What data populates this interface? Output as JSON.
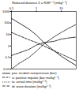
{
  "chart_data": {
    "type": "line",
    "xlabel": "Reduced distance Z = R/W¹ᐟ³ (m/kg¹ᐟ³)",
    "x": [
      0.1,
      0.2,
      0.5,
      1,
      2,
      5,
      10,
      20,
      40
    ],
    "series": [
      {
        "name": "pso: incident overpressure (bar)",
        "color": "#000000",
        "line_style": "solid",
        "values": [
          250,
          100,
          30,
          9,
          2,
          0.4,
          0.13,
          0.05,
          0.02
        ]
      },
      {
        "name": "is: positive impulse (bar·ms/kg¹ᐟ³)",
        "color": "#000000",
        "line_style": "dashed",
        "values": [
          15,
          8,
          3.5,
          2,
          1,
          0.4,
          0.2,
          0.1,
          0.05
        ]
      },
      {
        "name": "ta: arrival time (ms/kg¹ᐟ³)",
        "color": "#000000",
        "line_style": "dotted",
        "values": [
          0.01,
          0.03,
          0.1,
          0.35,
          1.5,
          6,
          15,
          35,
          75
        ]
      },
      {
        "name": "td: wave duration (ms/kg¹ᐟ³)",
        "color": "#000000",
        "line_style": "dashdot",
        "values": [
          0.15,
          0.25,
          0.5,
          1.2,
          2,
          2.5,
          4,
          5,
          6
        ]
      }
    ],
    "log": true,
    "xlim": [
      0.1,
      40
    ],
    "xticks": [
      0.1,
      1,
      10
    ],
    "ylim": [
      0.01,
      1000
    ],
    "yticks": [
      0.01,
      0.1,
      1,
      10,
      100,
      1000
    ],
    "legend": "bottom"
  }
}
